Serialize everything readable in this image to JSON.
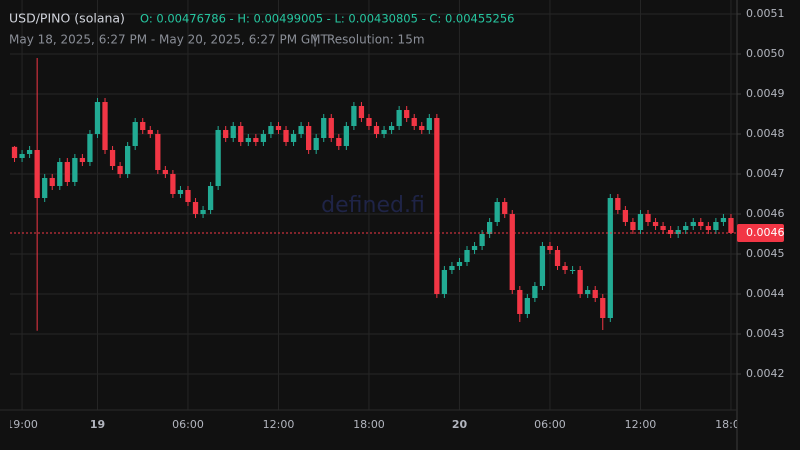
{
  "chart_data": {
    "type": "candlestick",
    "title": "USD/PINO (solana)",
    "ohlc_summary": "O: 0.00476786 - H: 0.00499005 - L: 0.00430805 - C: 0.00455256",
    "subtitle": "May 18, 2025, 6:27 PM - May 20, 2025, 6:27 PM GMT",
    "separator": "|",
    "resolution": "Resolution: 15m",
    "watermark": "defined.fi",
    "last_price_label": "0.0046",
    "up_color": "#22ab94",
    "down_color": "#f23645",
    "grid": true,
    "xlim": [
      -0.6,
      95.8
    ],
    "xticks": [
      {
        "value": 1,
        "label": "19:00"
      },
      {
        "value": 11,
        "label": "19"
      },
      {
        "value": 23,
        "label": "06:00"
      },
      {
        "value": 35,
        "label": "12:00"
      },
      {
        "value": 47,
        "label": "18:00"
      },
      {
        "value": 59,
        "label": "20"
      },
      {
        "value": 71,
        "label": "06:00"
      },
      {
        "value": 83,
        "label": "12:00"
      },
      {
        "value": 95,
        "label": "18:00"
      }
    ],
    "ylim": [
      0.00411,
      0.005135
    ],
    "yticks": [
      0.0042,
      0.0043,
      0.0044,
      0.0045,
      0.0046,
      0.0047,
      0.0048,
      0.0049,
      {
        "value": 0.005,
        "label": "0.0050"
      },
      0.0051
    ],
    "open": [
      0.00476786,
      0.00474,
      0.00475,
      0.00476,
      0.00464,
      0.00469,
      0.00467,
      0.00473,
      0.00468,
      0.00474,
      0.00473,
      0.0048,
      0.00488,
      0.00476,
      0.00472,
      0.0047,
      0.00477,
      0.00483,
      0.00481,
      0.0048,
      0.00471,
      0.0047,
      0.00465,
      0.00466,
      0.00463,
      0.0046,
      0.00461,
      0.00467,
      0.00481,
      0.00479,
      0.00482,
      0.00478,
      0.00479,
      0.00478,
      0.0048,
      0.00482,
      0.00481,
      0.00478,
      0.0048,
      0.00482,
      0.00476,
      0.00479,
      0.00484,
      0.00479,
      0.00477,
      0.00482,
      0.00487,
      0.00484,
      0.00482,
      0.0048,
      0.00481,
      0.00482,
      0.00486,
      0.00484,
      0.00482,
      0.00481,
      0.00484,
      0.0044,
      0.00446,
      0.00447,
      0.00448,
      0.00451,
      0.00452,
      0.00455,
      0.00458,
      0.00463,
      0.0046,
      0.00441,
      0.00435,
      0.00439,
      0.00442,
      0.00452,
      0.00451,
      0.00447,
      0.00446,
      0.00446,
      0.0044,
      0.00441,
      0.00439,
      0.00434,
      0.00464,
      0.00461,
      0.00458,
      0.00456,
      0.0046,
      0.00458,
      0.00457,
      0.00456,
      0.00455,
      0.00456,
      0.00457,
      0.00458,
      0.00457,
      0.00456,
      0.00458,
      0.00459
    ],
    "high": [
      0.00477,
      0.00476,
      0.00477,
      0.00499005,
      0.0047,
      0.0047,
      0.00474,
      0.00474,
      0.00475,
      0.00475,
      0.00481,
      0.00489,
      0.00489,
      0.00477,
      0.00473,
      0.00478,
      0.00484,
      0.00484,
      0.00482,
      0.00481,
      0.00472,
      0.00471,
      0.00467,
      0.00467,
      0.00464,
      0.00462,
      0.00468,
      0.00482,
      0.00482,
      0.00483,
      0.00483,
      0.0048,
      0.0048,
      0.00481,
      0.00483,
      0.00483,
      0.00482,
      0.00481,
      0.00483,
      0.00483,
      0.0048,
      0.00485,
      0.00485,
      0.0048,
      0.00483,
      0.00488,
      0.00488,
      0.00485,
      0.00483,
      0.00482,
      0.00483,
      0.00487,
      0.00487,
      0.00485,
      0.00483,
      0.00485,
      0.00485,
      0.00447,
      0.00448,
      0.00449,
      0.00452,
      0.00453,
      0.00456,
      0.00459,
      0.00464,
      0.00464,
      0.00461,
      0.00442,
      0.0044,
      0.00443,
      0.00453,
      0.00453,
      0.00452,
      0.00448,
      0.00447,
      0.00447,
      0.00442,
      0.00442,
      0.0044,
      0.00465,
      0.00465,
      0.00462,
      0.00459,
      0.00461,
      0.00461,
      0.00459,
      0.00458,
      0.00457,
      0.00457,
      0.00458,
      0.00459,
      0.00459,
      0.00458,
      0.00459,
      0.0046,
      0.0046
    ],
    "low": [
      0.00473,
      0.00473,
      0.00474,
      0.00430805,
      0.00463,
      0.00466,
      0.00466,
      0.00467,
      0.00467,
      0.00472,
      0.00472,
      0.00479,
      0.00475,
      0.00471,
      0.00469,
      0.00469,
      0.00476,
      0.0048,
      0.00479,
      0.0047,
      0.00469,
      0.00464,
      0.00464,
      0.00462,
      0.00459,
      0.00459,
      0.0046,
      0.00466,
      0.00478,
      0.00478,
      0.00477,
      0.00477,
      0.00477,
      0.00477,
      0.00479,
      0.0048,
      0.00477,
      0.00477,
      0.00479,
      0.00475,
      0.00475,
      0.00478,
      0.00478,
      0.00476,
      0.00476,
      0.00481,
      0.00483,
      0.00481,
      0.00479,
      0.00479,
      0.0048,
      0.00481,
      0.00483,
      0.00481,
      0.0048,
      0.0048,
      0.00439,
      0.00439,
      0.00445,
      0.00446,
      0.00447,
      0.0045,
      0.00451,
      0.00454,
      0.00457,
      0.00459,
      0.0044,
      0.00433,
      0.00434,
      0.00438,
      0.00441,
      0.0045,
      0.00446,
      0.00445,
      0.00445,
      0.00439,
      0.00439,
      0.00438,
      0.00431,
      0.00433,
      0.0046,
      0.00457,
      0.00455,
      0.00455,
      0.00457,
      0.00456,
      0.00455,
      0.00454,
      0.00454,
      0.00455,
      0.00456,
      0.00456,
      0.00455,
      0.00455,
      0.00457,
      0.00455
    ],
    "close": [
      0.00474,
      0.00475,
      0.00476,
      0.00464,
      0.00469,
      0.00467,
      0.00473,
      0.00468,
      0.00474,
      0.00473,
      0.0048,
      0.00488,
      0.00476,
      0.00472,
      0.0047,
      0.00477,
      0.00483,
      0.00481,
      0.0048,
      0.00471,
      0.0047,
      0.00465,
      0.00466,
      0.00463,
      0.0046,
      0.00461,
      0.00467,
      0.00481,
      0.00479,
      0.00482,
      0.00478,
      0.00479,
      0.00478,
      0.0048,
      0.00482,
      0.00481,
      0.00478,
      0.0048,
      0.00482,
      0.00476,
      0.00479,
      0.00484,
      0.00479,
      0.00477,
      0.00482,
      0.00487,
      0.00484,
      0.00482,
      0.0048,
      0.00481,
      0.00482,
      0.00486,
      0.00484,
      0.00482,
      0.00481,
      0.00484,
      0.0044,
      0.00446,
      0.00447,
      0.00448,
      0.00451,
      0.00452,
      0.00455,
      0.00458,
      0.00463,
      0.0046,
      0.00441,
      0.00435,
      0.00439,
      0.00442,
      0.00452,
      0.00451,
      0.00447,
      0.00446,
      0.00446,
      0.0044,
      0.00441,
      0.00439,
      0.00434,
      0.00464,
      0.00461,
      0.00458,
      0.00456,
      0.0046,
      0.00458,
      0.00457,
      0.00456,
      0.00455,
      0.00456,
      0.00457,
      0.00458,
      0.00457,
      0.00456,
      0.00458,
      0.00459,
      0.00455256
    ]
  }
}
